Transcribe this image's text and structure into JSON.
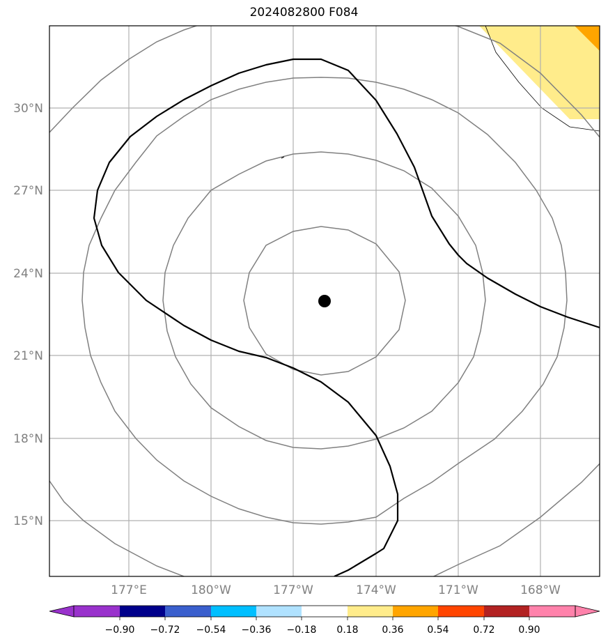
{
  "title": "2024082800 F084",
  "colors": {
    "grid": "#b0b0b0",
    "range_rings": "#808080",
    "contour": "#000000",
    "storm_center": "#000000",
    "tick_text": "#808080"
  },
  "map": {
    "lon_labels": [
      "177°E",
      "180°W",
      "177°W",
      "174°W",
      "171°W",
      "168°W"
    ],
    "lat_labels": [
      "30°N",
      "27°N",
      "24°N",
      "21°N",
      "18°N",
      "15°N"
    ],
    "storm_center_lat": 23.0,
    "storm_center_lon": -175.6
  },
  "colorbar": {
    "colors": [
      "#9932cc",
      "#00008b",
      "#3a5fcd",
      "#00bfff",
      "#b0e2ff",
      "#ffffff",
      "#ffec8b",
      "#ffa500",
      "#ff4500",
      "#b22222",
      "#ff82ab"
    ],
    "tick_labels": [
      "−0.90",
      "−0.72",
      "−0.54",
      "−0.36",
      "−0.18",
      "0.18",
      "0.36",
      "0.54",
      "0.72",
      "0.90"
    ]
  }
}
